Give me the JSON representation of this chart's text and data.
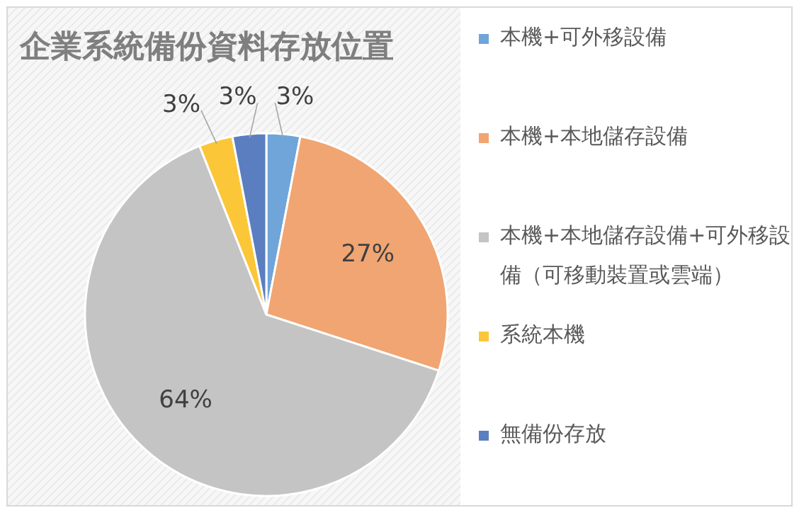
{
  "chart_data": {
    "type": "pie",
    "title": "企業系統備份資料存放位置",
    "categories": [
      "本機+可外移設備",
      "本機+本地儲存設備",
      "本機+本地儲存設備+可外移設備（可移動裝置或雲端）",
      "系統本機",
      "無備份存放"
    ],
    "values": [
      3,
      27,
      64,
      3,
      3
    ],
    "colors": [
      "#6fa5d8",
      "#f0a572",
      "#c4c4c4",
      "#fbc638",
      "#5b7ec0"
    ],
    "value_labels": [
      "3%",
      "27%",
      "64%",
      "3%",
      "3%"
    ],
    "legend": "right"
  }
}
